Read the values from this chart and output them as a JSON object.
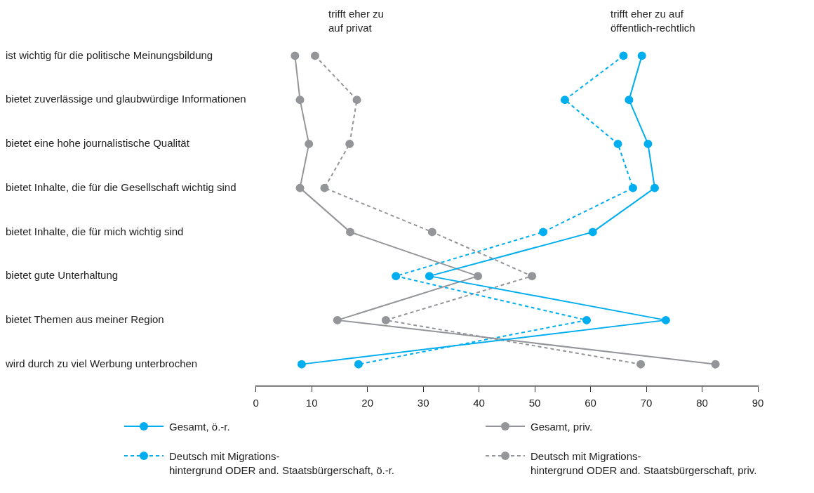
{
  "chart_data": {
    "type": "line",
    "orientation": "horizontal",
    "categories": [
      "ist wichtig für die politische Meinungsbildung",
      "bietet zuverlässige und glaubwürdige Informationen",
      "bietet eine hohe journalistische Qualität",
      "bietet Inhalte, die für die Gesellschaft wichtig sind",
      "bietet Inhalte, die für mich wichtig sind",
      "bietet gute Unterhaltung",
      "bietet Themen aus meiner Region",
      "wird durch zu viel Werbung unterbrochen"
    ],
    "series": [
      {
        "name": "Gesamt, ö.-r.",
        "color": "#00aeef",
        "line_style": "solid",
        "values": [
          69.2,
          66.9,
          70.3,
          71.5,
          60.4,
          31.1,
          73.5,
          8.2
        ]
      },
      {
        "name": "Gesamt, priv.",
        "color": "#939598",
        "line_style": "solid",
        "values": [
          7,
          7.9,
          9.5,
          7.9,
          16.9,
          39.8,
          14.6,
          82.4
        ]
      },
      {
        "name": "Deutsch mit Migrations-\nhintergrund ODER and. Staatsbürgerschaft, ö.-r.",
        "color": "#00aeef",
        "line_style": "dashed",
        "values": [
          65.9,
          55.4,
          64.9,
          67.6,
          51.5,
          25.1,
          59.3,
          18.4
        ]
      },
      {
        "name": "Deutsch mit Migrations-\nhintergrund ODER and. Staatsbürgerschaft, priv.",
        "color": "#939598",
        "line_style": "dashed",
        "values": [
          10.6,
          18.1,
          16.8,
          12.3,
          31.6,
          49.5,
          23.3,
          69
        ]
      }
    ],
    "xlim": [
      0,
      90
    ],
    "xticks": [
      0,
      10,
      20,
      30,
      40,
      50,
      60,
      70,
      80,
      90
    ],
    "annotations": [
      "trifft eher zu\nauf privat",
      "trifft eher zu auf\nöffentlich-rechtlich"
    ],
    "marker": "circle",
    "grid": false,
    "legend": "bottom"
  }
}
